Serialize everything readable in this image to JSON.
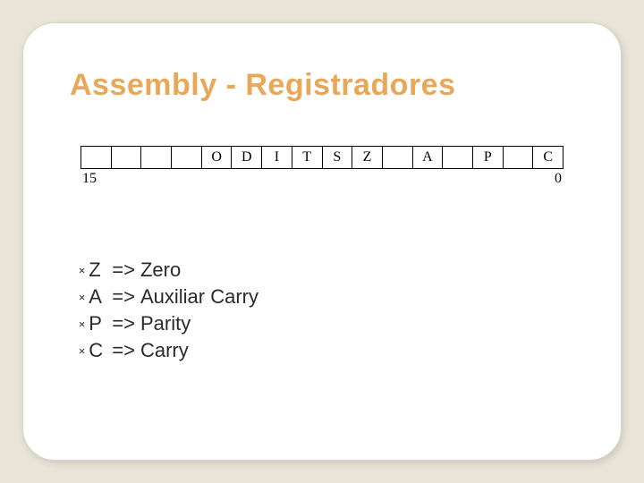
{
  "slide": {
    "title": "Assembly - Registradores",
    "title_color": "#e7a85a",
    "title_fontsize": 34,
    "background_outer": "#e8e4d8",
    "background_card": "#ffffff",
    "card_border_radius": 36,
    "flag_register": {
      "cells": [
        "",
        "",
        "",
        "",
        "O",
        "D",
        "I",
        "T",
        "S",
        "Z",
        "",
        "A",
        "",
        "P",
        "",
        "C"
      ],
      "bit_high": "15",
      "bit_low": "0",
      "cell_count": 16,
      "border_color": "#000000",
      "cell_font": "Times New Roman",
      "cell_fontsize": 16
    },
    "bullet_glyph": "༝",
    "arrow": "=>",
    "definitions": [
      {
        "flag": "Z",
        "meaning": "Zero"
      },
      {
        "flag": "A",
        "meaning": "Auxiliar Carry"
      },
      {
        "flag": "P",
        "meaning": "Parity"
      },
      {
        "flag": "C",
        "meaning": "Carry"
      }
    ],
    "def_fontsize": 22,
    "def_color": "#2a2a2a"
  }
}
